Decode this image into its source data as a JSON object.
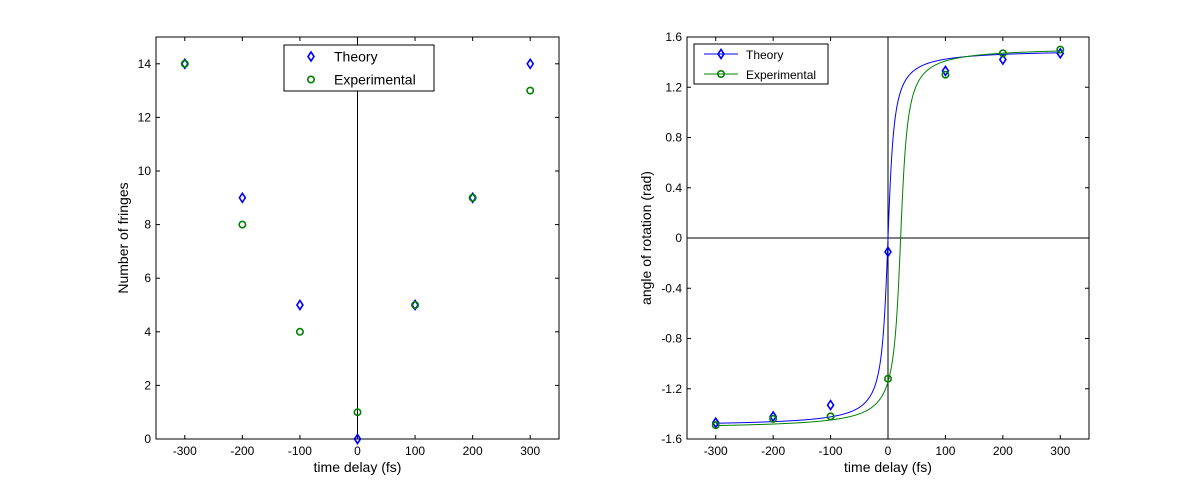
{
  "chart_data": [
    {
      "type": "scatter",
      "xlabel": "time delay (fs)",
      "ylabel": "Number of fringes",
      "xlim": [
        -350,
        350
      ],
      "ylim": [
        0,
        15
      ],
      "xticks": [
        -300,
        -200,
        -100,
        0,
        100,
        200,
        300
      ],
      "yticks": [
        0,
        2,
        4,
        6,
        8,
        10,
        12,
        14
      ],
      "legend_position": "top-center",
      "series": [
        {
          "name": "Theory",
          "marker": "diamond",
          "color": "#0000ff",
          "x": [
            -300,
            -200,
            -100,
            0,
            100,
            200,
            300
          ],
          "y": [
            14,
            9,
            5,
            0,
            5,
            9,
            14
          ]
        },
        {
          "name": "Experimental",
          "marker": "circle",
          "color": "#008000",
          "x": [
            -300,
            -200,
            -100,
            0,
            100,
            200,
            300
          ],
          "y": [
            14,
            8,
            4,
            1,
            5,
            9,
            13
          ]
        }
      ]
    },
    {
      "type": "line",
      "xlabel": "time delay (fs)",
      "ylabel": "angle of rotation (rad)",
      "xlim": [
        -350,
        350
      ],
      "ylim": [
        -1.6,
        1.6
      ],
      "xticks": [
        -300,
        -200,
        -100,
        0,
        100,
        200,
        300
      ],
      "yticks": [
        -1.6,
        -1.2,
        -0.8,
        -0.4,
        0,
        0.4,
        0.8,
        1.2,
        1.6
      ],
      "ytick_labels": [
        "-1.6",
        "-1.2",
        "-0.8",
        "-0.4",
        "0",
        "0.4",
        "0.8",
        "1.2",
        "1.6"
      ],
      "legend_position": "top-left",
      "series": [
        {
          "name": "Theory",
          "marker": "diamond",
          "color": "#0000ff",
          "x": [
            -300,
            -200,
            -100,
            0,
            100,
            200,
            300
          ],
          "y": [
            -1.47,
            -1.42,
            -1.33,
            -0.11,
            1.33,
            1.42,
            1.47
          ]
        },
        {
          "name": "Experimental",
          "marker": "circle",
          "color": "#008000",
          "x": [
            -300,
            -200,
            -100,
            0,
            100,
            200,
            300
          ],
          "y": [
            -1.49,
            -1.44,
            -1.42,
            -1.12,
            1.3,
            1.47,
            1.5
          ]
        }
      ],
      "curves": [
        {
          "series": "Theory",
          "color": "#0000ff",
          "center": 0,
          "amplitude": 1.5,
          "width": 8
        },
        {
          "series": "Experimental",
          "color": "#008000",
          "center": 22,
          "amplitude": 1.52,
          "width": 9
        }
      ]
    }
  ]
}
